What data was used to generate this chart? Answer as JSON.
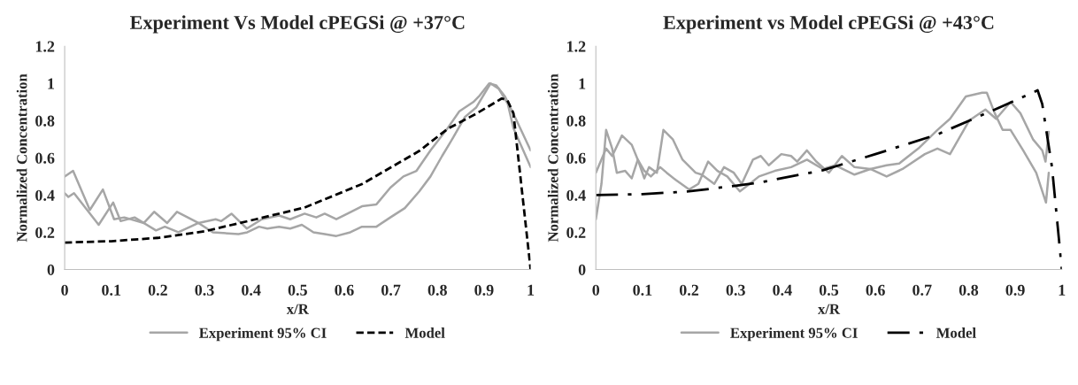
{
  "chart_data": [
    {
      "type": "line",
      "title": "Experiment Vs Model cPEGSi @ +37°C",
      "xlabel": "x/R",
      "ylabel": "Normalized Concentration",
      "xlim": [
        0,
        1
      ],
      "xticks": [
        0,
        0.1,
        0.2,
        0.3,
        0.4,
        0.5,
        0.6,
        0.7,
        0.8,
        0.9,
        1
      ],
      "ylim": [
        0,
        1.2
      ],
      "yticks": [
        0,
        0.2,
        0.4,
        0.6,
        0.8,
        1,
        1.2
      ],
      "grid": false,
      "legend": "bottom",
      "series": [
        {
          "name": "Experiment 95% CI",
          "color": "#a6a6a6",
          "line_style": "solid",
          "x": [
            0,
            0.018,
            0.054,
            0.082,
            0.106,
            0.128,
            0.17,
            0.192,
            0.22,
            0.241,
            0.287,
            0.324,
            0.336,
            0.358,
            0.391,
            0.423,
            0.46,
            0.484,
            0.515,
            0.54,
            0.558,
            0.583,
            0.607,
            0.638,
            0.669,
            0.699,
            0.727,
            0.755,
            0.785,
            0.822,
            0.847,
            0.877,
            0.889,
            0.911,
            0.926,
            0.945,
            0.97,
            1.0
          ],
          "values": [
            0.5,
            0.53,
            0.32,
            0.43,
            0.27,
            0.28,
            0.25,
            0.31,
            0.25,
            0.31,
            0.25,
            0.27,
            0.26,
            0.3,
            0.22,
            0.27,
            0.29,
            0.27,
            0.3,
            0.28,
            0.3,
            0.27,
            0.3,
            0.34,
            0.35,
            0.44,
            0.5,
            0.53,
            0.64,
            0.76,
            0.85,
            0.9,
            0.93,
            1.0,
            0.99,
            0.93,
            0.8,
            0.64
          ]
        },
        {
          "color": "#a6a6a6",
          "line_style": "solid",
          "x": [
            0,
            0.008,
            0.02,
            0.073,
            0.104,
            0.12,
            0.15,
            0.196,
            0.215,
            0.244,
            0.287,
            0.318,
            0.373,
            0.392,
            0.417,
            0.435,
            0.46,
            0.484,
            0.509,
            0.534,
            0.558,
            0.583,
            0.613,
            0.638,
            0.669,
            0.699,
            0.73,
            0.761,
            0.785,
            0.81,
            0.834,
            0.859,
            0.883,
            0.902,
            0.914,
            0.932,
            0.951,
            0.963,
            1.0
          ],
          "values": [
            0.41,
            0.39,
            0.41,
            0.24,
            0.36,
            0.26,
            0.28,
            0.21,
            0.23,
            0.2,
            0.25,
            0.2,
            0.19,
            0.2,
            0.23,
            0.22,
            0.23,
            0.22,
            0.24,
            0.2,
            0.19,
            0.18,
            0.2,
            0.23,
            0.23,
            0.28,
            0.33,
            0.42,
            0.5,
            0.61,
            0.71,
            0.82,
            0.87,
            0.95,
            1.0,
            0.97,
            0.89,
            0.76,
            0.55
          ]
        },
        {
          "name": "Model",
          "color": "#000000",
          "line_style": "dashed",
          "x": [
            0,
            0.1,
            0.2,
            0.3,
            0.41,
            0.515,
            0.638,
            0.761,
            0.822,
            0.883,
            0.938,
            0.95,
            0.963,
            1.0
          ],
          "values": [
            0.145,
            0.152,
            0.17,
            0.205,
            0.27,
            0.333,
            0.459,
            0.637,
            0.756,
            0.837,
            0.919,
            0.91,
            0.84,
            0
          ]
        }
      ]
    },
    {
      "type": "line",
      "title": "Experiment vs Model cPEGSi @ +43°C",
      "xlabel": "x/R",
      "ylabel": "Normalized Concentration",
      "xlim": [
        0,
        1
      ],
      "xticks": [
        0,
        0.1,
        0.2,
        0.3,
        0.4,
        0.5,
        0.6,
        0.7,
        0.8,
        0.9,
        1
      ],
      "ylim": [
        0,
        1.2
      ],
      "yticks": [
        0,
        0.2,
        0.4,
        0.6,
        0.8,
        1,
        1.2
      ],
      "grid": false,
      "legend": "bottom",
      "series": [
        {
          "name": "Experiment 95% CI",
          "color": "#a6a6a6",
          "line_style": "solid",
          "x": [
            0,
            0.022,
            0.035,
            0.056,
            0.077,
            0.09,
            0.104,
            0.114,
            0.131,
            0.145,
            0.165,
            0.186,
            0.214,
            0.227,
            0.254,
            0.275,
            0.296,
            0.313,
            0.337,
            0.354,
            0.371,
            0.398,
            0.419,
            0.432,
            0.453,
            0.473,
            0.5,
            0.528,
            0.555,
            0.589,
            0.624,
            0.651,
            0.692,
            0.733,
            0.76,
            0.794,
            0.829,
            0.839,
            0.856,
            0.873,
            0.89,
            0.917,
            0.945,
            0.966,
            0.972
          ],
          "values": [
            0.52,
            0.65,
            0.61,
            0.72,
            0.67,
            0.59,
            0.49,
            0.55,
            0.52,
            0.75,
            0.7,
            0.59,
            0.52,
            0.51,
            0.46,
            0.55,
            0.52,
            0.46,
            0.59,
            0.61,
            0.56,
            0.62,
            0.61,
            0.58,
            0.64,
            0.58,
            0.52,
            0.61,
            0.55,
            0.54,
            0.56,
            0.57,
            0.65,
            0.75,
            0.81,
            0.93,
            0.95,
            0.95,
            0.84,
            0.75,
            0.75,
            0.64,
            0.52,
            0.36,
            0.52
          ]
        },
        {
          "color": "#a6a6a6",
          "line_style": "solid",
          "x": [
            0,
            0.012,
            0.022,
            0.035,
            0.045,
            0.063,
            0.077,
            0.09,
            0.104,
            0.118,
            0.138,
            0.152,
            0.172,
            0.2,
            0.22,
            0.241,
            0.261,
            0.282,
            0.309,
            0.33,
            0.35,
            0.384,
            0.419,
            0.453,
            0.487,
            0.514,
            0.555,
            0.589,
            0.624,
            0.658,
            0.706,
            0.733,
            0.76,
            0.801,
            0.836,
            0.859,
            0.89,
            0.911,
            0.938,
            0.958,
            0.965,
            0.972
          ],
          "values": [
            0.27,
            0.46,
            0.75,
            0.65,
            0.52,
            0.53,
            0.49,
            0.59,
            0.53,
            0.5,
            0.55,
            0.52,
            0.48,
            0.43,
            0.46,
            0.58,
            0.53,
            0.5,
            0.42,
            0.46,
            0.5,
            0.53,
            0.55,
            0.59,
            0.54,
            0.56,
            0.51,
            0.54,
            0.5,
            0.54,
            0.62,
            0.65,
            0.62,
            0.8,
            0.86,
            0.81,
            0.9,
            0.84,
            0.7,
            0.64,
            0.58,
            0.74
          ]
        },
        {
          "name": "Model",
          "color": "#000000",
          "line_style": "dashdot",
          "x": [
            0,
            0.1,
            0.2,
            0.3,
            0.35,
            0.487,
            0.6,
            0.733,
            0.883,
            0.948,
            0.958,
            0.979,
            1.0
          ],
          "values": [
            0.4,
            0.405,
            0.42,
            0.45,
            0.467,
            0.533,
            0.62,
            0.726,
            0.889,
            0.963,
            0.889,
            0.548,
            0
          ]
        }
      ]
    }
  ]
}
